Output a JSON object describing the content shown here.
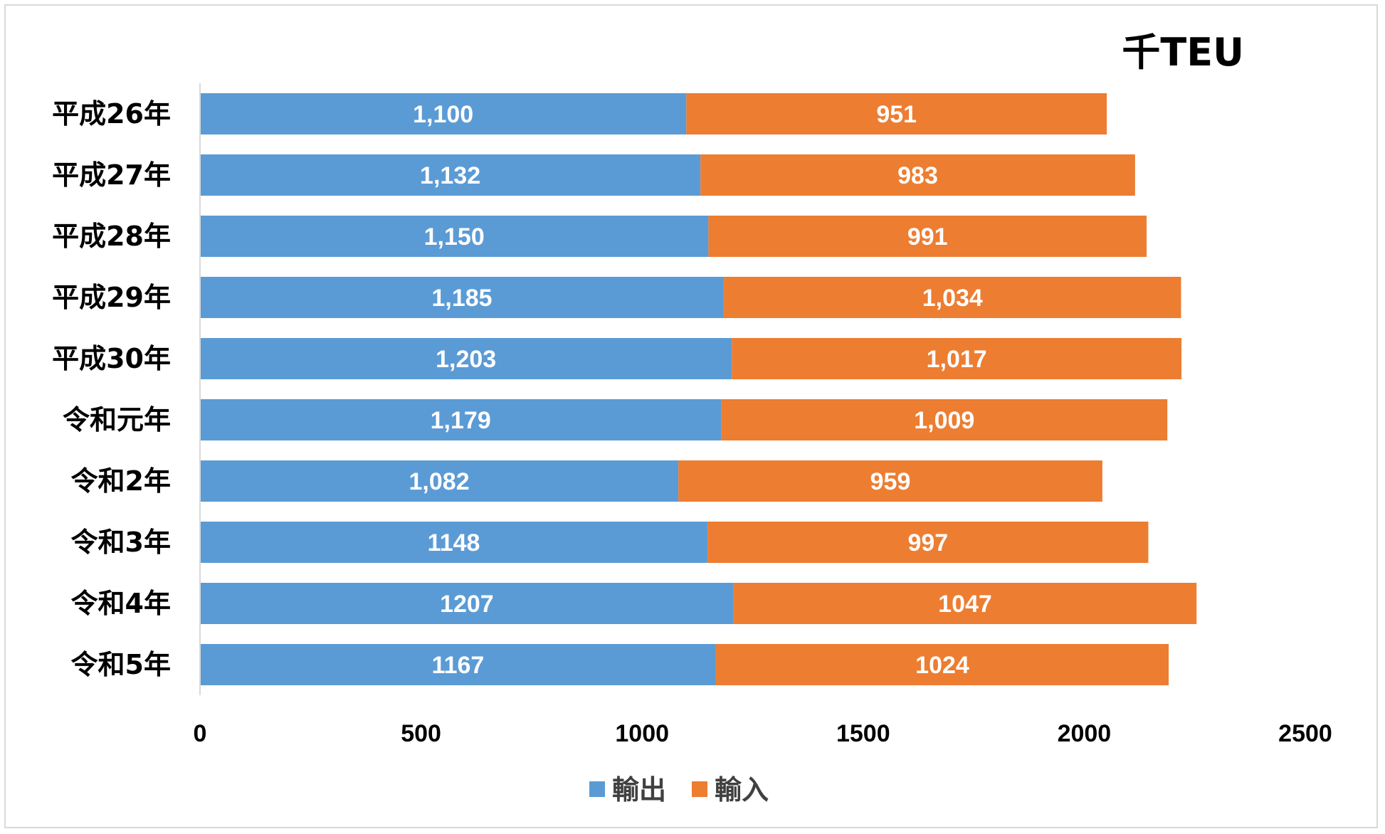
{
  "chart_data": {
    "type": "bar",
    "orientation": "horizontal",
    "stacked": true,
    "unit_label": "千TEU",
    "categories": [
      "平成26年",
      "平成27年",
      "平成28年",
      "平成29年",
      "平成30年",
      "令和元年",
      "令和2年",
      "令和3年",
      "令和4年",
      "令和5年"
    ],
    "series": [
      {
        "name": "輸出",
        "color": "#5b9bd5",
        "values": [
          1100,
          1132,
          1150,
          1185,
          1203,
          1179,
          1082,
          1148,
          1207,
          1167
        ],
        "labels": [
          "1,100",
          "1,132",
          "1,150",
          "1,185",
          "1,203",
          "1,179",
          "1,082",
          "1148",
          "1207",
          "1167"
        ]
      },
      {
        "name": "輸入",
        "color": "#ed7d31",
        "values": [
          951,
          983,
          991,
          1034,
          1017,
          1009,
          959,
          997,
          1047,
          1024
        ],
        "labels": [
          "951",
          "983",
          "991",
          "1,034",
          "1,017",
          "1,009",
          "959",
          "997",
          "1047",
          "1024"
        ]
      }
    ],
    "xlim": [
      0,
      2500
    ],
    "x_ticks": [
      0,
      500,
      1000,
      1500,
      2000,
      2500
    ],
    "grid": false,
    "legend_position": "bottom"
  }
}
